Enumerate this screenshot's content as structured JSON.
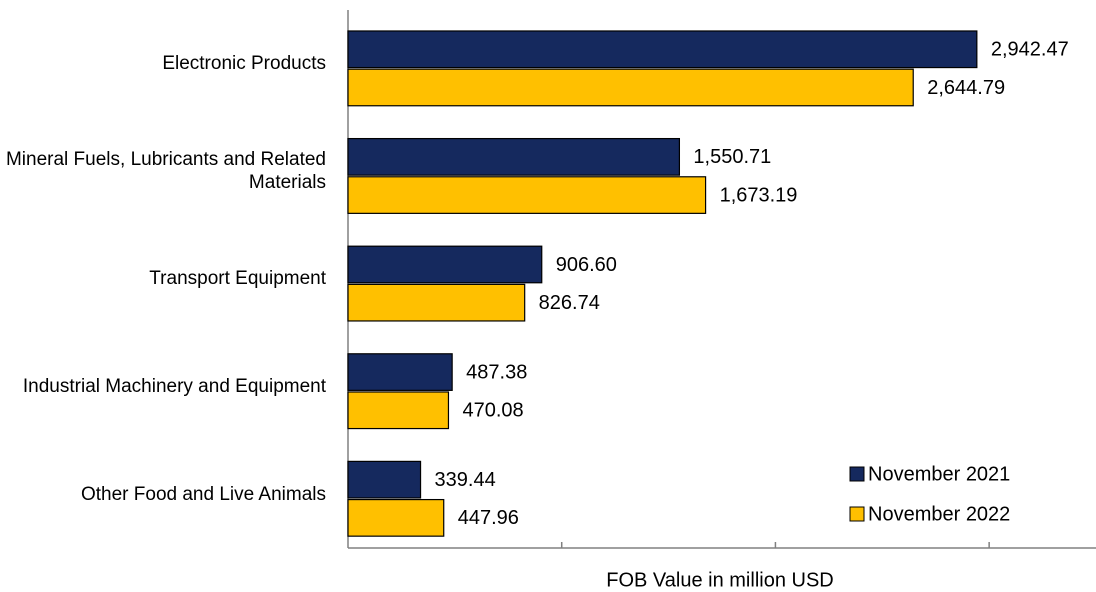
{
  "chart_data": {
    "type": "barh",
    "categories": [
      "Electronic Products",
      "Mineral Fuels, Lubricants and Related Materials",
      "Transport Equipment",
      "Industrial Machinery and Equipment",
      "Other Food and Live Animals"
    ],
    "series": [
      {
        "name": "November 2021",
        "color": "#15295e",
        "values": [
          2942.47,
          1550.71,
          906.6,
          487.38,
          339.44
        ],
        "value_labels": [
          "2,942.47",
          "1,550.71",
          "906.60",
          "487.38",
          "339.44"
        ]
      },
      {
        "name": "November 2022",
        "color": "#ffc000",
        "values": [
          2644.79,
          1673.19,
          826.74,
          470.08,
          447.96
        ],
        "value_labels": [
          "2,644.79",
          "1,673.19",
          "826.74",
          "470.08",
          "447.96"
        ]
      }
    ],
    "xlabel": "FOB Value in million USD",
    "xlim": [
      0,
      3500
    ],
    "xticks": [
      1000,
      2000,
      3000
    ],
    "legend": "lower right"
  }
}
